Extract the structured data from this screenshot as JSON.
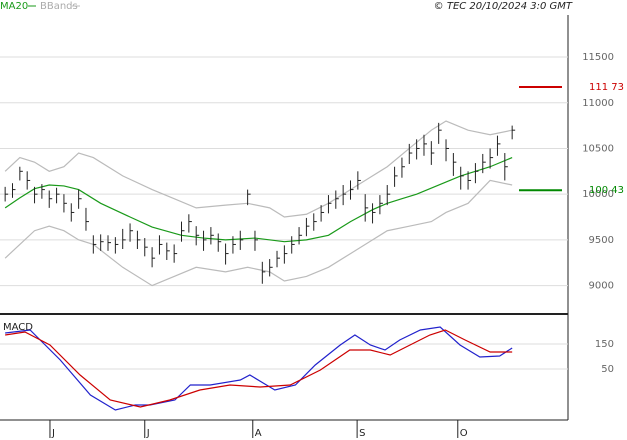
{
  "chart_data": [
    {
      "type": "ohlc",
      "source": "© TEC 20/10/2024 3:0 GMT",
      "color": "#222",
      "x": [
        0,
        1,
        2,
        3,
        4,
        5,
        6,
        7,
        8,
        9,
        10,
        11,
        12,
        13,
        14,
        15,
        16,
        17,
        18,
        19,
        20,
        21,
        22,
        23,
        24,
        25,
        26,
        27,
        28,
        29,
        30,
        31,
        32,
        33,
        34,
        35,
        36,
        37,
        38,
        39,
        40,
        41,
        42,
        43,
        44,
        45,
        46,
        47,
        48,
        49,
        50,
        51,
        52,
        53,
        54,
        55,
        56,
        57,
        58,
        59,
        60,
        61,
        62,
        63,
        64,
        65,
        66,
        67,
        68,
        69
      ],
      "high": [
        10080,
        10120,
        10300,
        10250,
        10080,
        10110,
        10040,
        10070,
        10000,
        9900,
        10050,
        9850,
        9550,
        9560,
        9550,
        9530,
        9620,
        9680,
        9600,
        9520,
        9420,
        9550,
        9470,
        9450,
        9700,
        9780,
        9650,
        9600,
        9640,
        9570,
        9460,
        9540,
        9600,
        10050,
        9600,
        9260,
        9290,
        9380,
        9440,
        9540,
        9640,
        9740,
        9790,
        9880,
        9990,
        10040,
        10100,
        10150,
        10250,
        10000,
        9900,
        9990,
        10100,
        10300,
        10400,
        10550,
        10600,
        10650,
        10580,
        10780,
        10600,
        10450,
        10300,
        10250,
        10340,
        10440,
        10500,
        10640,
        10450,
        10750
      ],
      "low": [
        9920,
        9960,
        10150,
        10050,
        9900,
        9950,
        9850,
        9900,
        9800,
        9700,
        9840,
        9600,
        9350,
        9380,
        9380,
        9350,
        9400,
        9480,
        9400,
        9320,
        9200,
        9340,
        9280,
        9250,
        9480,
        9580,
        9440,
        9380,
        9450,
        9370,
        9230,
        9350,
        9390,
        9880,
        9380,
        9020,
        9100,
        9200,
        9240,
        9350,
        9450,
        9540,
        9600,
        9700,
        9790,
        9840,
        9880,
        9940,
        10050,
        9700,
        9680,
        9780,
        9880,
        10080,
        10180,
        10330,
        10380,
        10420,
        10320,
        10550,
        10360,
        10200,
        10050,
        10050,
        10120,
        10230,
        10280,
        10420,
        10150,
        10600
      ],
      "close": [
        10000,
        10050,
        10250,
        10150,
        10000,
        10050,
        9950,
        10000,
        9900,
        9800,
        9950,
        9700,
        9450,
        9480,
        9470,
        9450,
        9500,
        9600,
        9500,
        9420,
        9300,
        9450,
        9380,
        9350,
        9600,
        9700,
        9550,
        9500,
        9550,
        9480,
        9350,
        9450,
        9500,
        10000,
        9500,
        9150,
        9200,
        9300,
        9350,
        9450,
        9550,
        9650,
        9700,
        9800,
        9900,
        9950,
        10000,
        10050,
        10150,
        9850,
        9800,
        9900,
        10000,
        10200,
        10300,
        10450,
        10500,
        10550,
        10450,
        10700,
        10500,
        10350,
        10200,
        10150,
        10250,
        10350,
        10400,
        10550,
        10300,
        10700
      ],
      "series": [
        {
          "name": "MA20",
          "color": "#1a9a1a",
          "x": [
            0,
            2,
            4,
            6,
            8,
            10,
            13,
            17,
            20,
            24,
            27,
            30,
            34,
            38,
            41,
            44,
            47,
            50,
            52,
            54,
            56,
            59,
            62,
            64,
            66,
            69
          ],
          "values": [
            9850,
            9960,
            10060,
            10100,
            10090,
            10050,
            9900,
            9750,
            9640,
            9550,
            9520,
            9500,
            9520,
            9480,
            9500,
            9550,
            9700,
            9830,
            9900,
            9950,
            10000,
            10100,
            10200,
            10250,
            10300,
            10400
          ]
        },
        {
          "name": "BBands",
          "color": "#bbbbbb",
          "x": [
            0,
            2,
            4,
            6,
            8,
            10,
            12,
            16,
            20,
            23,
            26,
            30,
            33,
            36,
            38,
            41,
            44,
            47,
            50,
            52,
            55,
            58,
            60,
            63,
            66,
            69
          ],
          "upper": [
            10250,
            10400,
            10350,
            10250,
            10300,
            10450,
            10400,
            10200,
            10050,
            9950,
            9850,
            9880,
            9900,
            9850,
            9750,
            9780,
            9900,
            10050,
            10200,
            10300,
            10500,
            10700,
            10800,
            10700,
            10650,
            10700
          ],
          "lower": [
            9300,
            9450,
            9600,
            9650,
            9600,
            9500,
            9450,
            9200,
            9000,
            9100,
            9200,
            9150,
            9200,
            9150,
            9050,
            9100,
            9200,
            9350,
            9500,
            9600,
            9650,
            9700,
            9800,
            9900,
            10150,
            10100
          ]
        }
      ],
      "hlines": [
        {
          "value": 11173,
          "label": "111 73",
          "color": "#cc0000"
        },
        {
          "value": 10043,
          "label": "100 43",
          "color": "#008800"
        }
      ],
      "xlim": [
        -0.7,
        76.6
      ],
      "ylim": [
        8700,
        11960
      ],
      "yticks": [
        9000,
        9500,
        10000,
        10500,
        11000,
        11500
      ]
    },
    {
      "type": "line",
      "title": "MACD",
      "series": [
        {
          "color": "#2222cc",
          "x": [
            0,
            3.4,
            7.5,
            11.6,
            15,
            17.7,
            19.7,
            23.1,
            25.2,
            27.9,
            32,
            33.3,
            36.7,
            39.5,
            42.2,
            45.6,
            47.6,
            49.7,
            51.7,
            53.7,
            56.5,
            59.2,
            61.9,
            64.6,
            67.3,
            69
          ],
          "values": [
            194,
            206,
            86,
            -54,
            -114,
            -94,
            -94,
            -74,
            -14,
            -14,
            6,
            26,
            -34,
            -14,
            66,
            146,
            186,
            146,
            126,
            166,
            206,
            218,
            146,
            98,
            102,
            134
          ]
        },
        {
          "color": "#cc0000",
          "x": [
            0,
            2.7,
            6.1,
            10.2,
            14.3,
            18.4,
            22.4,
            26.5,
            30.6,
            34.7,
            38.8,
            42.9,
            46.9,
            49.7,
            52.4,
            55.1,
            57.8,
            59.9,
            62.6,
            66,
            69
          ],
          "values": [
            186,
            198,
            146,
            26,
            -74,
            -102,
            -74,
            -34,
            -14,
            -22,
            -14,
            46,
            126,
            126,
            106,
            146,
            186,
            206,
            166,
            118,
            118
          ]
        }
      ],
      "xlim": [
        -0.7,
        76.6
      ],
      "ylim": [
        -154,
        262
      ],
      "yticks": [
        50,
        150
      ],
      "xticks": [
        {
          "value": 6.1,
          "label": "J"
        },
        {
          "value": 19,
          "label": "J"
        },
        {
          "value": 33.7,
          "label": "A"
        },
        {
          "value": 47.9,
          "label": "S"
        },
        {
          "value": 61.6,
          "label": "O"
        }
      ]
    }
  ]
}
